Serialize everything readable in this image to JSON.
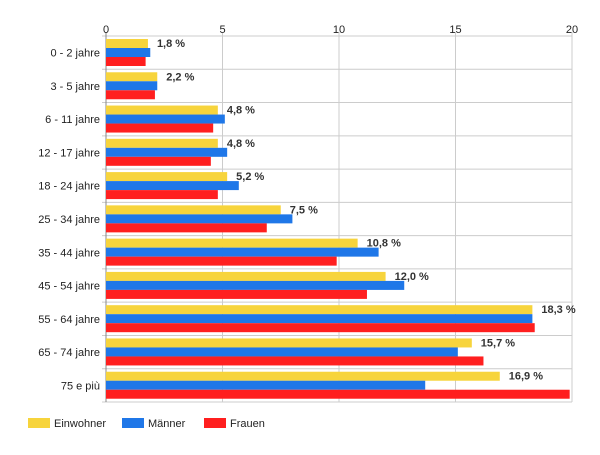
{
  "chart_data": {
    "type": "bar",
    "orientation": "horizontal",
    "categories": [
      "0 - 2 jahre",
      "3 - 5 jahre",
      "6 - 11 jahre",
      "12 - 17 jahre",
      "18 - 24 jahre",
      "25 - 34 jahre",
      "35 - 44 jahre",
      "45 - 54 jahre",
      "55 - 64 jahre",
      "65 - 74 jahre",
      "75 e più"
    ],
    "series": [
      {
        "name": "Einwohner",
        "color": "#f7d43c",
        "values": [
          1.8,
          2.2,
          4.8,
          4.8,
          5.2,
          7.5,
          10.8,
          12.0,
          18.3,
          15.7,
          16.9
        ]
      },
      {
        "name": "Männer",
        "color": "#1f77e8",
        "values": [
          1.9,
          2.2,
          5.1,
          5.2,
          5.7,
          8.0,
          11.7,
          12.8,
          18.3,
          15.1,
          13.7
        ]
      },
      {
        "name": "Frauen",
        "color": "#ff1f1f",
        "values": [
          1.7,
          2.1,
          4.6,
          4.5,
          4.8,
          6.9,
          9.9,
          11.2,
          18.4,
          16.2,
          19.9
        ]
      }
    ],
    "data_labels": [
      "1,8 %",
      "2,2 %",
      "4,8 %",
      "4,8 %",
      "5,2 %",
      "7,5 %",
      "10,8 %",
      "12,0 %",
      "18,3 %",
      "15,7 %",
      "16,9 %"
    ],
    "x_ticks": [
      "0",
      "5",
      "10",
      "15",
      "20"
    ],
    "xlim": [
      0,
      20
    ],
    "grid": true,
    "legend_position": "bottom-left",
    "title": "",
    "xlabel": "",
    "ylabel": ""
  }
}
